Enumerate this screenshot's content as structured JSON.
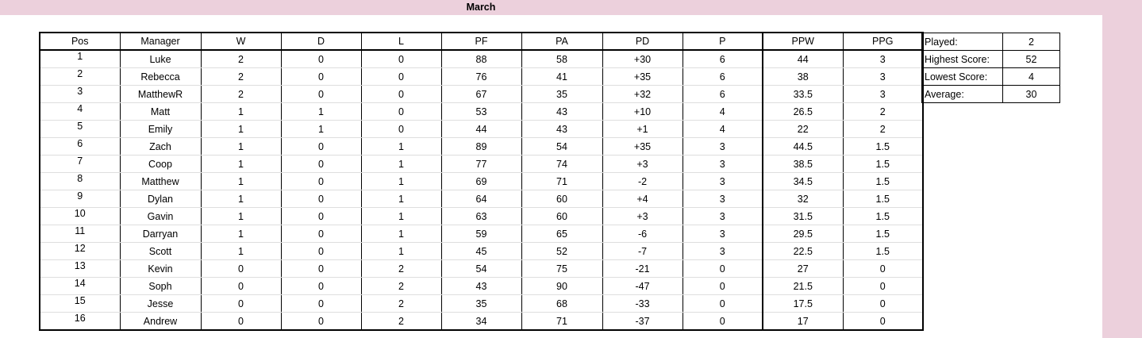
{
  "sheet": {
    "title": "March",
    "accent_color": "#ecd0dc"
  },
  "league_table": {
    "headers": [
      "Pos",
      "Manager",
      "W",
      "D",
      "L",
      "PF",
      "PA",
      "PD",
      "P",
      "PPW",
      "PPG"
    ],
    "rows": [
      {
        "pos": "1",
        "manager": "Luke",
        "w": "2",
        "d": "0",
        "l": "0",
        "pf": "88",
        "pa": "58",
        "pd": "+30",
        "p": "6",
        "ppw": "44",
        "ppg": "3"
      },
      {
        "pos": "2",
        "manager": "Rebecca",
        "w": "2",
        "d": "0",
        "l": "0",
        "pf": "76",
        "pa": "41",
        "pd": "+35",
        "p": "6",
        "ppw": "38",
        "ppg": "3"
      },
      {
        "pos": "3",
        "manager": "MatthewR",
        "w": "2",
        "d": "0",
        "l": "0",
        "pf": "67",
        "pa": "35",
        "pd": "+32",
        "p": "6",
        "ppw": "33.5",
        "ppg": "3"
      },
      {
        "pos": "4",
        "manager": "Matt",
        "w": "1",
        "d": "1",
        "l": "0",
        "pf": "53",
        "pa": "43",
        "pd": "+10",
        "p": "4",
        "ppw": "26.5",
        "ppg": "2"
      },
      {
        "pos": "5",
        "manager": "Emily",
        "w": "1",
        "d": "1",
        "l": "0",
        "pf": "44",
        "pa": "43",
        "pd": "+1",
        "p": "4",
        "ppw": "22",
        "ppg": "2"
      },
      {
        "pos": "6",
        "manager": "Zach",
        "w": "1",
        "d": "0",
        "l": "1",
        "pf": "89",
        "pa": "54",
        "pd": "+35",
        "p": "3",
        "ppw": "44.5",
        "ppg": "1.5"
      },
      {
        "pos": "7",
        "manager": "Coop",
        "w": "1",
        "d": "0",
        "l": "1",
        "pf": "77",
        "pa": "74",
        "pd": "+3",
        "p": "3",
        "ppw": "38.5",
        "ppg": "1.5"
      },
      {
        "pos": "8",
        "manager": "Matthew",
        "w": "1",
        "d": "0",
        "l": "1",
        "pf": "69",
        "pa": "71",
        "pd": "-2",
        "p": "3",
        "ppw": "34.5",
        "ppg": "1.5"
      },
      {
        "pos": "9",
        "manager": "Dylan",
        "w": "1",
        "d": "0",
        "l": "1",
        "pf": "64",
        "pa": "60",
        "pd": "+4",
        "p": "3",
        "ppw": "32",
        "ppg": "1.5"
      },
      {
        "pos": "10",
        "manager": "Gavin",
        "w": "1",
        "d": "0",
        "l": "1",
        "pf": "63",
        "pa": "60",
        "pd": "+3",
        "p": "3",
        "ppw": "31.5",
        "ppg": "1.5"
      },
      {
        "pos": "11",
        "manager": "Darryan",
        "w": "1",
        "d": "0",
        "l": "1",
        "pf": "59",
        "pa": "65",
        "pd": "-6",
        "p": "3",
        "ppw": "29.5",
        "ppg": "1.5"
      },
      {
        "pos": "12",
        "manager": "Scott",
        "w": "1",
        "d": "0",
        "l": "1",
        "pf": "45",
        "pa": "52",
        "pd": "-7",
        "p": "3",
        "ppw": "22.5",
        "ppg": "1.5"
      },
      {
        "pos": "13",
        "manager": "Kevin",
        "w": "0",
        "d": "0",
        "l": "2",
        "pf": "54",
        "pa": "75",
        "pd": "-21",
        "p": "0",
        "ppw": "27",
        "ppg": "0"
      },
      {
        "pos": "14",
        "manager": "Soph",
        "w": "0",
        "d": "0",
        "l": "2",
        "pf": "43",
        "pa": "90",
        "pd": "-47",
        "p": "0",
        "ppw": "21.5",
        "ppg": "0"
      },
      {
        "pos": "15",
        "manager": "Jesse",
        "w": "0",
        "d": "0",
        "l": "2",
        "pf": "35",
        "pa": "68",
        "pd": "-33",
        "p": "0",
        "ppw": "17.5",
        "ppg": "0"
      },
      {
        "pos": "16",
        "manager": "Andrew",
        "w": "0",
        "d": "0",
        "l": "2",
        "pf": "34",
        "pa": "71",
        "pd": "-37",
        "p": "0",
        "ppw": "17",
        "ppg": "0"
      }
    ]
  },
  "summary": [
    {
      "label": "Played:",
      "value": "2"
    },
    {
      "label": "Highest Score:",
      "value": "52"
    },
    {
      "label": "Lowest Score:",
      "value": "4"
    },
    {
      "label": "Average:",
      "value": "30"
    }
  ]
}
